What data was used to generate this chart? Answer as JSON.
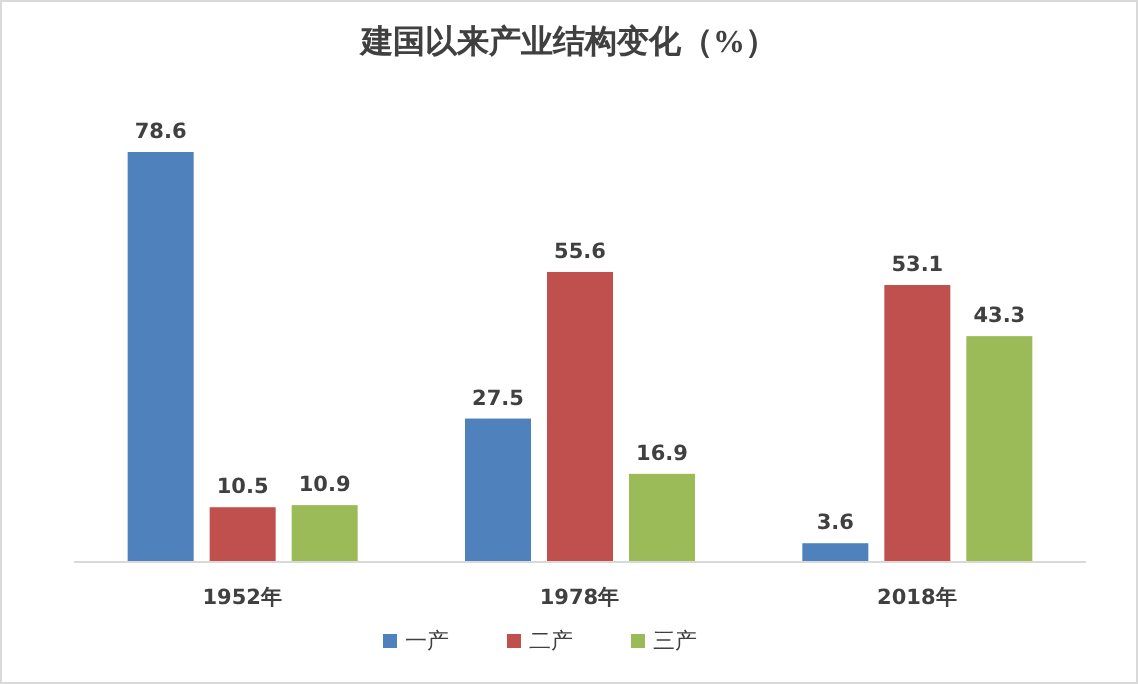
{
  "chart_data": {
    "type": "bar",
    "title": "建国以来产业结构变化（%）",
    "categories": [
      "1952年",
      "1978年",
      "2018年"
    ],
    "series": [
      {
        "name": "一产",
        "color": "#4f81bd",
        "values": [
          78.6,
          27.5,
          3.6
        ]
      },
      {
        "name": "二产",
        "color": "#c0504d",
        "values": [
          10.5,
          55.6,
          53.1
        ]
      },
      {
        "name": "三产",
        "color": "#9bbb59",
        "values": [
          10.9,
          16.9,
          43.3
        ]
      }
    ],
    "data_labels": true,
    "legend": "bottom"
  }
}
